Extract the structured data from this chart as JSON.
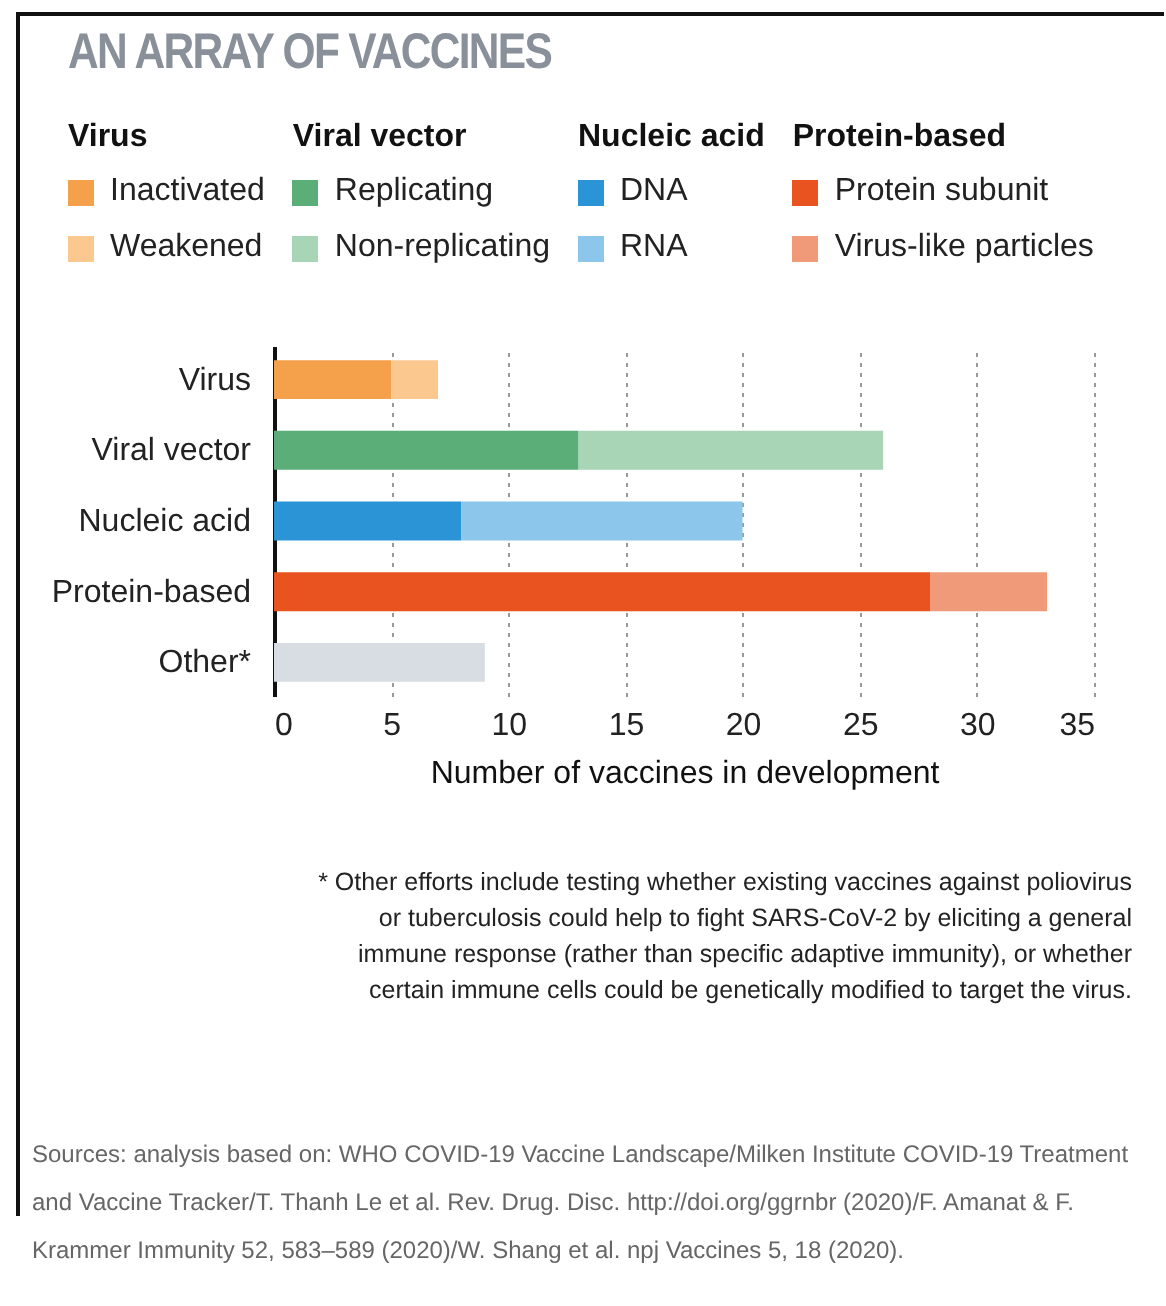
{
  "chart_data": {
    "type": "bar",
    "orientation": "horizontal",
    "stacked": true,
    "title": "AN ARRAY OF VACCINES",
    "xlabel": "Number of vaccines in development",
    "categories": [
      "Virus",
      "Viral vector",
      "Nucleic acid",
      "Protein-based",
      "Other*"
    ],
    "series": [
      {
        "name": "Inactivated",
        "color": "#f5a04a",
        "values": [
          5,
          null,
          null,
          null,
          null
        ]
      },
      {
        "name": "Weakened",
        "color": "#fbc98f",
        "values": [
          2,
          null,
          null,
          null,
          null
        ]
      },
      {
        "name": "Replicating",
        "color": "#5cae78",
        "values": [
          null,
          13,
          null,
          null,
          null
        ]
      },
      {
        "name": "Non-replicating",
        "color": "#a8d5b5",
        "values": [
          null,
          13,
          null,
          null,
          null
        ]
      },
      {
        "name": "DNA",
        "color": "#2a94d6",
        "values": [
          null,
          null,
          8,
          null,
          null
        ]
      },
      {
        "name": "RNA",
        "color": "#8cc6ea",
        "values": [
          null,
          null,
          12,
          null,
          null
        ]
      },
      {
        "name": "Protein subunit",
        "color": "#e8531f",
        "values": [
          null,
          null,
          null,
          28,
          null
        ]
      },
      {
        "name": "Virus-like particles",
        "color": "#f09a7a",
        "values": [
          null,
          null,
          null,
          5,
          null
        ]
      },
      {
        "color": "#d8dde3",
        "values": [
          null,
          null,
          null,
          null,
          9
        ]
      }
    ],
    "xlim": [
      0,
      35
    ],
    "xticks": [
      0,
      5,
      10,
      15,
      20,
      25,
      30,
      35
    ],
    "grid": "x",
    "legend": "top",
    "annotations": [
      "Virus",
      "Viral vector",
      "Nucleic acid",
      "Protein-based",
      "* Other efforts include testing whether existing vaccines against poliovirus or tuberculosis could help to fight SARS-CoV-2 by eliciting a general immune response (rather than specific adaptive immunity), or whether certain immune cells could be genetically modified to target the virus.",
      "Sources: analysis based on: WHO COVID-19 Vaccine Landscape/Milken Institute COVID-19 Treatment and Vaccine Tracker/T. Thanh Le et al. Rev. Drug. Disc. http://doi.org/ggrnbr (2020)/F. Amanat & F. Krammer Immunity 52, 583–589 (2020)/W. Shang et al. npj Vaccines 5, 18 (2020)."
    ]
  }
}
